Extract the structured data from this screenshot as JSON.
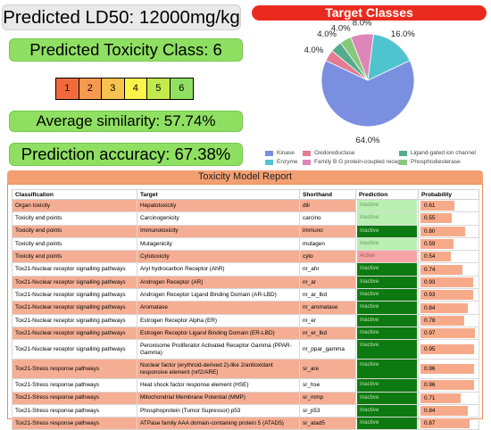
{
  "summary": {
    "ld50": "Predicted LD50: 12000mg/kg",
    "toxicity_class": "Predicted Toxicity Class: 6",
    "average_similarity": "Average similarity: 57.74%",
    "prediction_accuracy": "Prediction accuracy: 67.38%"
  },
  "toxicity_scale": [
    {
      "label": "1",
      "color": "#f06a3c"
    },
    {
      "label": "2",
      "color": "#f59a4e"
    },
    {
      "label": "3",
      "color": "#f8c24e"
    },
    {
      "label": "4",
      "color": "#fbf24a"
    },
    {
      "label": "5",
      "color": "#c2ea4c"
    },
    {
      "label": "6",
      "color": "#8fe062"
    }
  ],
  "target_classes": {
    "title": "Target Classes",
    "slices": [
      {
        "name": "Kinase",
        "value": 64.0,
        "label": "64.0%",
        "color": "#7b8fe0"
      },
      {
        "name": "Oxidoreductase",
        "value": 4.0,
        "label": "4.0%",
        "color": "#e37b93"
      },
      {
        "name": "Ligand-gated ion channel",
        "value": 4.0,
        "label": "4.0%",
        "color": "#53ad8c"
      },
      {
        "name": "Phosphodiesterase",
        "value": 4.0,
        "label": "4.0%",
        "color": "#87c87a"
      },
      {
        "name": "Family B G protein-coupled receptor",
        "value": 8.0,
        "label": "8.0%",
        "color": "#de86b8"
      },
      {
        "name": "Enzyme",
        "value": 16.0,
        "label": "16.0%",
        "color": "#4fc4cf"
      }
    ],
    "legend": [
      {
        "name": "Kinase",
        "color": "#7b8fe0"
      },
      {
        "name": "Oxidoreductase",
        "color": "#e37b93"
      },
      {
        "name": "Ligand-gated ion channel",
        "color": "#53ad8c"
      },
      {
        "name": "Enzyme",
        "color": "#4fc4cf"
      },
      {
        "name": "Family B G protein-coupled receptor",
        "color": "#de86b8"
      },
      {
        "name": "Phosphodiesterase",
        "color": "#87c87a"
      }
    ]
  },
  "report": {
    "title": "Toxicity Model Report",
    "columns": [
      "Classification",
      "Target",
      "Shorthand",
      "Prediction",
      "Probability"
    ],
    "rows": [
      {
        "classification": "Organ toxicity",
        "target": "Hepatotoxicity",
        "shorthand": "dili",
        "prediction": "Inactive",
        "probability": 0.61,
        "prob_label": "0.61",
        "tone": "pink",
        "pred_style": "inactive-light"
      },
      {
        "classification": "Toxicity end points",
        "target": "Carcinogenicity",
        "shorthand": "carcino",
        "prediction": "Inactive",
        "probability": 0.55,
        "prob_label": "0.55",
        "tone": "white",
        "pred_style": "inactive-light"
      },
      {
        "classification": "Toxicity end points",
        "target": "Immunotoxicity",
        "shorthand": "immuno",
        "prediction": "Inactive",
        "probability": 0.8,
        "prob_label": "0.80",
        "tone": "pink",
        "pred_style": "inactive-dark"
      },
      {
        "classification": "Toxicity end points",
        "target": "Mutagenicity",
        "shorthand": "mutagen",
        "prediction": "Inactive",
        "probability": 0.59,
        "prob_label": "0.59",
        "tone": "white",
        "pred_style": "inactive-light"
      },
      {
        "classification": "Toxicity end points",
        "target": "Cytotoxicity",
        "shorthand": "cyto",
        "prediction": "Active",
        "probability": 0.54,
        "prob_label": "0.54",
        "tone": "pink",
        "pred_style": "active"
      },
      {
        "classification": "Tox21-Nuclear receptor signalling pathways",
        "target": "Aryl hydrocarbon Receptor (AhR)",
        "shorthand": "nr_ahr",
        "prediction": "Inactive",
        "probability": 0.74,
        "prob_label": "0.74",
        "tone": "white",
        "pred_style": "inactive-dark"
      },
      {
        "classification": "Tox21-Nuclear receptor signalling pathways",
        "target": "Androgen Receptor (AR)",
        "shorthand": "nr_ar",
        "prediction": "Inactive",
        "probability": 0.93,
        "prob_label": "0.93",
        "tone": "pink",
        "pred_style": "inactive-dark"
      },
      {
        "classification": "Tox21-Nuclear receptor signalling pathways",
        "target": "Androgen Receptor Ligand Binding Domain (AR-LBD)",
        "shorthand": "nr_ar_lbd",
        "prediction": "Inactive",
        "probability": 0.93,
        "prob_label": "0.93",
        "tone": "white",
        "pred_style": "inactive-dark"
      },
      {
        "classification": "Tox21-Nuclear receptor signalling pathways",
        "target": "Aromatase",
        "shorthand": "nr_aromatase",
        "prediction": "Inactive",
        "probability": 0.84,
        "prob_label": "0.84",
        "tone": "pink",
        "pred_style": "inactive-dark"
      },
      {
        "classification": "Tox21-Nuclear receptor signalling pathways",
        "target": "Estrogen Receptor Alpha (ER)",
        "shorthand": "nr_er",
        "prediction": "Inactive",
        "probability": 0.78,
        "prob_label": "0.78",
        "tone": "white",
        "pred_style": "inactive-dark"
      },
      {
        "classification": "Tox21-Nuclear receptor signalling pathways",
        "target": "Estrogen Receptor Ligand Binding Domain (ER-LBD)",
        "shorthand": "nr_er_lbd",
        "prediction": "Inactive",
        "probability": 0.97,
        "prob_label": "0.97",
        "tone": "pink",
        "pred_style": "inactive-dark"
      },
      {
        "classification": "Tox21-Nuclear receptor signalling pathways",
        "target": "Peroxisome Proliferator Activated Receptor Gamma (PPAR-Gamma)",
        "shorthand": "nr_ppar_gamma",
        "prediction": "Inactive",
        "probability": 0.95,
        "prob_label": "0.95",
        "tone": "white",
        "pred_style": "inactive-dark",
        "tall": true
      },
      {
        "classification": "Tox21-Stress response pathways",
        "target": "Nuclear factor (erythroid-derived 2)-like 2/antioxidant responsive element (nrf2/ARE)",
        "shorthand": "sr_are",
        "prediction": "Inactive",
        "probability": 0.96,
        "prob_label": "0.96",
        "tone": "pink",
        "pred_style": "inactive-dark",
        "tall": true
      },
      {
        "classification": "Tox21-Stress response pathways",
        "target": "Heat shock factor response element (HSE)",
        "shorthand": "sr_hse",
        "prediction": "Inactive",
        "probability": 0.96,
        "prob_label": "0.96",
        "tone": "white",
        "pred_style": "inactive-dark"
      },
      {
        "classification": "Tox21-Stress response pathways",
        "target": "Mitochondrial Membrane Potential (MMP)",
        "shorthand": "sr_mmp",
        "prediction": "Inactive",
        "probability": 0.71,
        "prob_label": "0.71",
        "tone": "pink",
        "pred_style": "inactive-dark"
      },
      {
        "classification": "Tox21-Stress response pathways",
        "target": "Phosphoprotein (Tumor Supressor) p53",
        "shorthand": "sr_p53",
        "prediction": "Inactive",
        "probability": 0.84,
        "prob_label": "0.84",
        "tone": "white",
        "pred_style": "inactive-dark"
      },
      {
        "classification": "Tox21-Stress response pathways",
        "target": "ATPase family AAA domain-containing protein 5 (ATAD5)",
        "shorthand": "sr_atad5",
        "prediction": "Inactive",
        "probability": 0.87,
        "prob_label": "0.87",
        "tone": "pink",
        "pred_style": "inactive-dark"
      }
    ]
  }
}
